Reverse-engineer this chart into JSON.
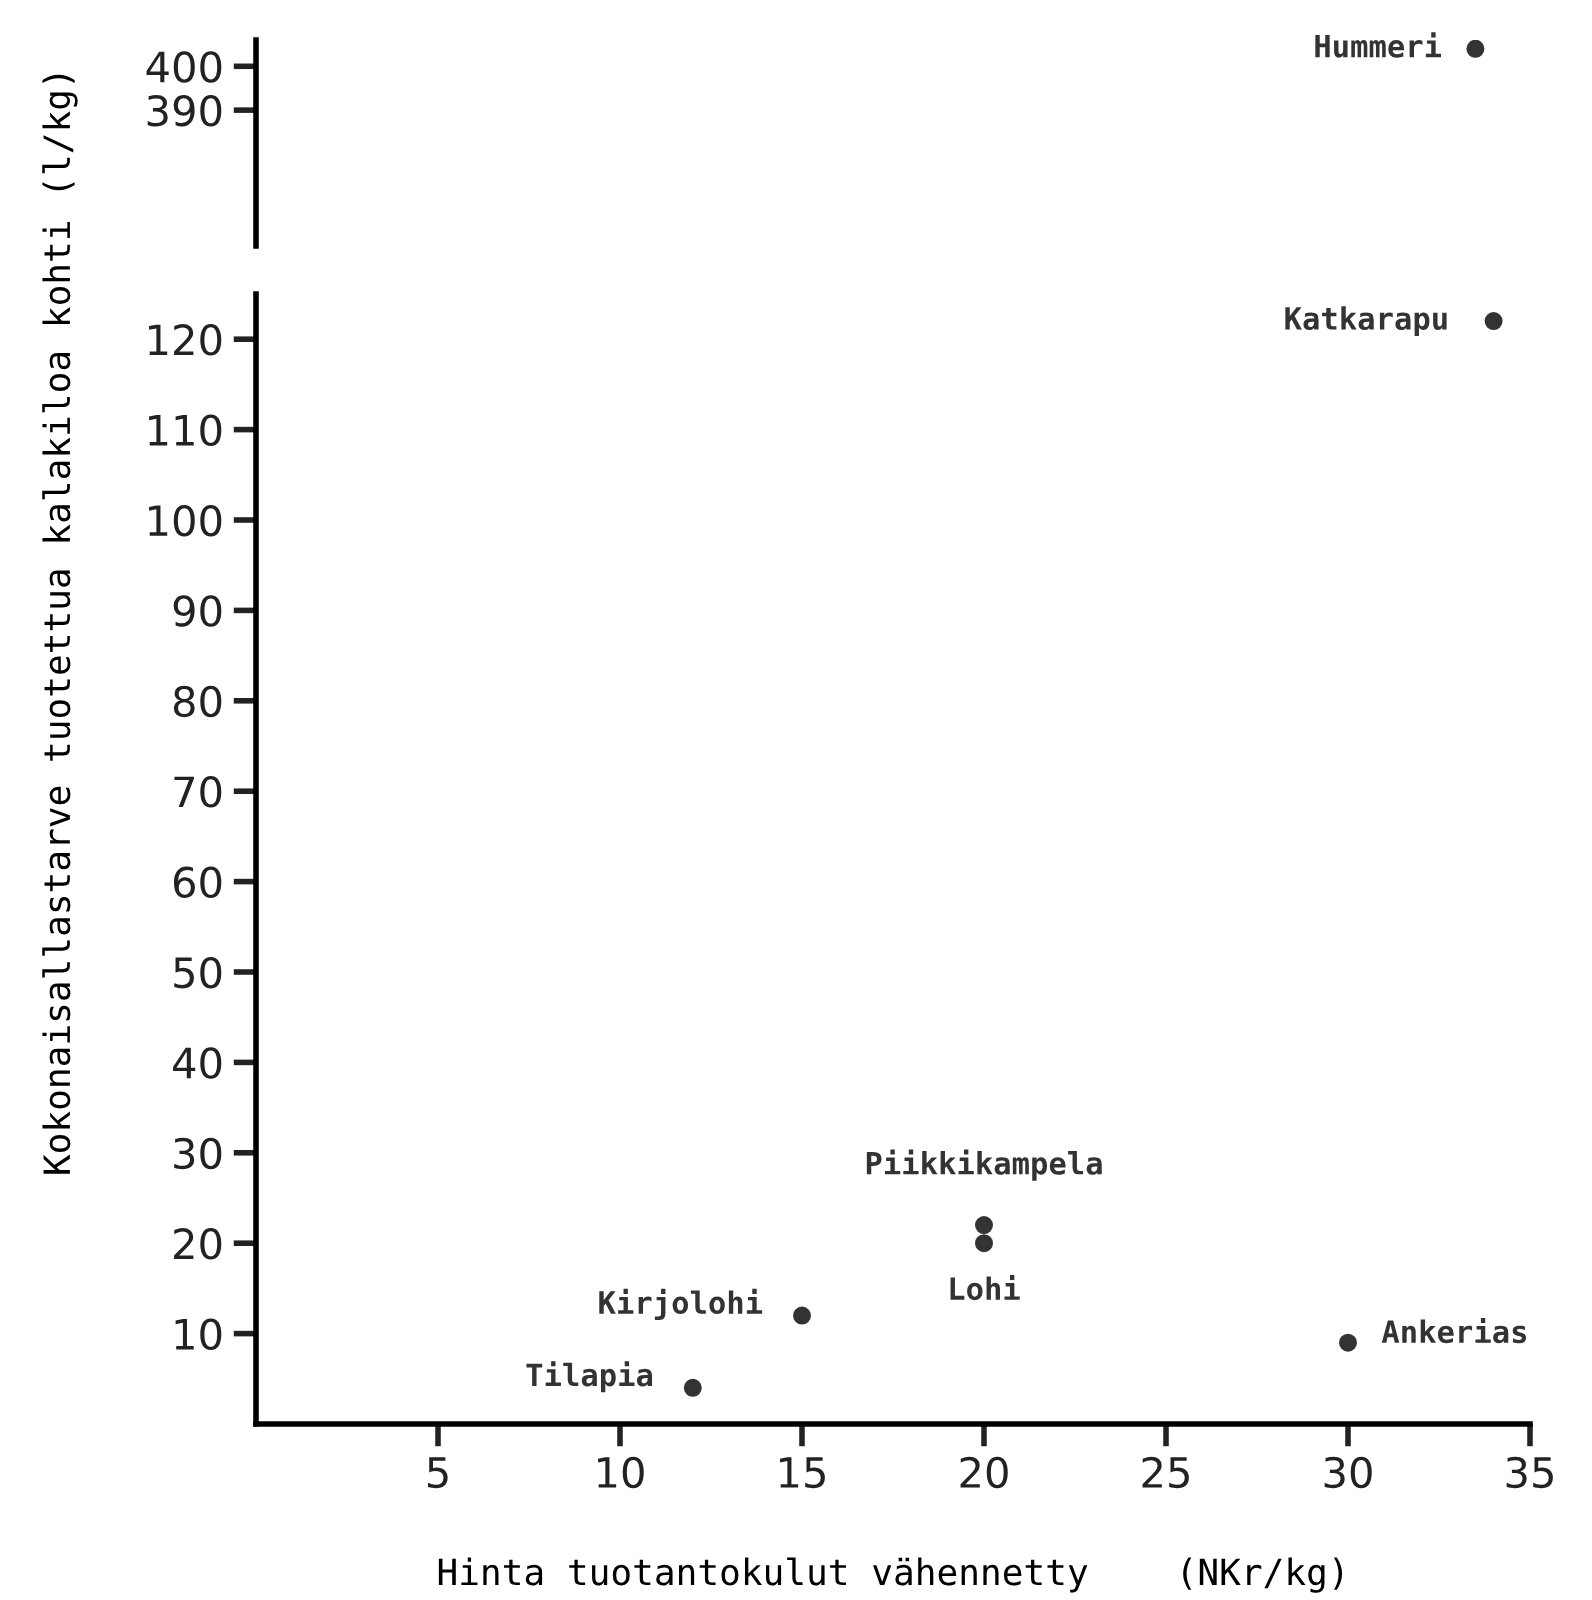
{
  "chart_data": [
    {
      "type": "scatter",
      "x": [
        33.5
      ],
      "values": [
        404
      ],
      "color": "#333333",
      "marker": "circle",
      "xlim": [
        0,
        35
      ],
      "ylim": [
        359,
        406
      ],
      "yticks": [
        390,
        400
      ],
      "tick_labels": "y",
      "annotations": [
        {
          "text": "Hummeri",
          "x": 33.5,
          "y": 404
        }
      ]
    },
    {
      "type": "scatter",
      "x": [
        12,
        15,
        20,
        20,
        30,
        34
      ],
      "values": [
        4,
        12,
        22,
        20,
        9,
        122
      ],
      "color": "#333333",
      "marker": "circle",
      "xlim": [
        0,
        35
      ],
      "ylim": [
        0,
        125
      ],
      "xticks": [
        5,
        10,
        15,
        20,
        25,
        30,
        35
      ],
      "yticks": [
        10,
        20,
        30,
        40,
        50,
        60,
        70,
        80,
        90,
        100,
        110,
        120
      ],
      "xlabel": "Hinta tuotantokulut vähennetty    (NKr/kg)",
      "ylabel": "Kokonaisallastarve tuotettua kalakiloa kohti (l/kg)",
      "annotations": [
        {
          "text": "Tilapia",
          "x": 12,
          "y": 4
        },
        {
          "text": "Kirjolohi",
          "x": 15,
          "y": 12
        },
        {
          "text": "Piikkikampela",
          "x": 20,
          "y": 22
        },
        {
          "text": "Lohi",
          "x": 20,
          "y": 20
        },
        {
          "text": "Ankerias",
          "x": 30,
          "y": 9
        },
        {
          "text": "Katkarapu",
          "x": 34,
          "y": 122
        }
      ]
    }
  ]
}
